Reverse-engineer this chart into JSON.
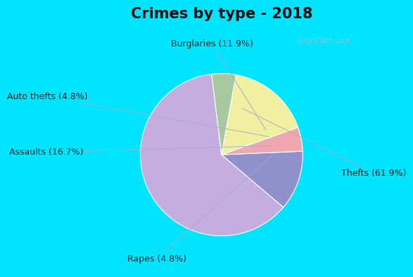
{
  "title": "Crimes by type - 2018",
  "labels": [
    "Thefts",
    "Burglaries",
    "Auto thefts",
    "Assaults",
    "Rapes"
  ],
  "values": [
    61.9,
    11.9,
    4.8,
    16.7,
    4.8
  ],
  "colors": [
    "#c4aee0",
    "#9090cc",
    "#f0a8b0",
    "#f0f0a0",
    "#a8c8a0"
  ],
  "label_texts": [
    "Thefts (61.9%)",
    "Burglaries (11.9%)",
    "Auto thefts (4.8%)",
    "Assaults (16.7%)",
    "Rapes (4.8%)"
  ],
  "bg_top_color": "#00e5ff",
  "bg_inner_color": "#d8ede0",
  "title_fontsize": 15,
  "label_fontsize": 9,
  "startangle": 97,
  "watermark": "City-Data.com"
}
